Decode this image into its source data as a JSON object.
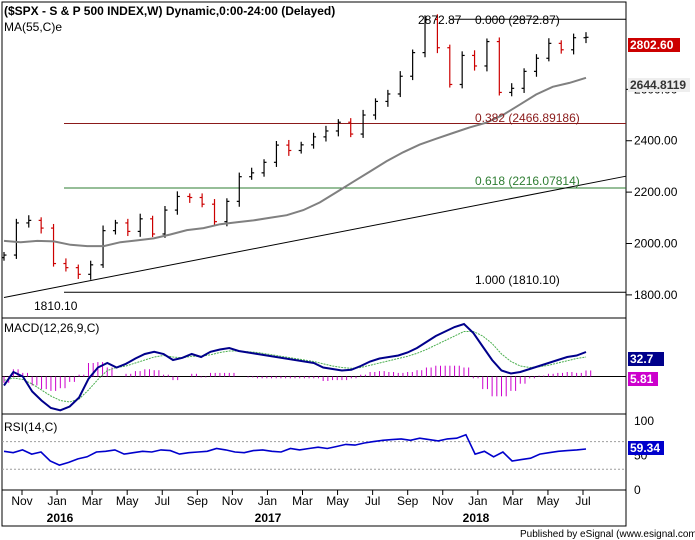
{
  "chart_data": [
    {
      "type": "candlestick",
      "title": "($SPX - S & P 500 INDEX,W) Dynamic,0:00-24:00 (Delayed)",
      "indicator_label": "MA(55,C)e",
      "y_axis": {
        "ylim": [
          1710,
          2940
        ],
        "ticks": [
          "1800.00",
          "2000.00",
          "2200.00",
          "2400.00",
          "2600.00"
        ]
      },
      "x_axis": {
        "months": [
          "Nov",
          "Jan",
          "Mar",
          "May",
          "Jul",
          "Sep",
          "Nov",
          "Jan",
          "Mar",
          "May",
          "Jul",
          "Sep",
          "Nov",
          "Jan",
          "Mar",
          "May",
          "Jul"
        ],
        "years": [
          "2016",
          "2017",
          "2018"
        ]
      },
      "series": [
        {
          "name": "$SPX weekly close",
          "x": [
            "2015-10-02",
            "2015-10-30",
            "2015-11-27",
            "2015-12-25",
            "2016-01-08",
            "2016-01-22",
            "2016-02-05",
            "2016-02-19",
            "2016-03-18",
            "2016-04-15",
            "2016-05-13",
            "2016-06-10",
            "2016-06-24",
            "2016-07-08",
            "2016-08-05",
            "2016-09-02",
            "2016-10-07",
            "2016-11-04",
            "2016-11-11",
            "2016-12-09",
            "2017-01-13",
            "2017-02-10",
            "2017-03-03",
            "2017-03-31",
            "2017-04-28",
            "2017-05-26",
            "2017-06-23",
            "2017-07-28",
            "2017-08-18",
            "2017-09-15",
            "2017-10-13",
            "2017-11-10",
            "2017-12-08",
            "2018-01-05",
            "2018-01-26",
            "2018-02-02",
            "2018-02-09",
            "2018-02-16",
            "2018-03-02",
            "2018-03-09",
            "2018-03-23",
            "2018-04-06",
            "2018-04-27",
            "2018-05-25",
            "2018-06-08",
            "2018-06-22",
            "2018-07-13",
            "2018-07-20"
          ],
          "values": [
            1955,
            2080,
            2090,
            2060,
            1922,
            1906,
            1880,
            1917,
            2050,
            2080,
            2047,
            2096,
            2037,
            2130,
            2183,
            2179,
            2153,
            2085,
            2164,
            2260,
            2275,
            2316,
            2383,
            2362,
            2384,
            2415,
            2438,
            2472,
            2426,
            2500,
            2553,
            2582,
            2651,
            2743,
            2872,
            2762,
            2619,
            2732,
            2691,
            2786,
            2588,
            2604,
            2670,
            2721,
            2779,
            2754,
            2801,
            2802.6
          ]
        },
        {
          "name": "MA(55,C)e",
          "values": [
            2010,
            2005,
            2010,
            2008,
            1995,
            1990,
            1990,
            2005,
            2012,
            2020,
            2035,
            2052,
            2060,
            2075,
            2083,
            2090,
            2100,
            2110,
            2130,
            2160,
            2200,
            2240,
            2280,
            2320,
            2355,
            2385,
            2408,
            2430,
            2452,
            2470,
            2500,
            2540,
            2580,
            2610,
            2625,
            2644.81
          ]
        }
      ],
      "price_labels": {
        "high_label": "2872.87",
        "last_close": "2802.60",
        "ma_value": "2644.8119",
        "low_label": "1810.10"
      },
      "fibonacci": [
        {
          "label": "0.000 (2872.87)",
          "value": 2872.87,
          "color": "#000000"
        },
        {
          "label": "0.382 (2466.89186)",
          "value": 2466.89,
          "color": "#8b1a1a"
        },
        {
          "label": "0.618 (2216.07814)",
          "value": 2216.08,
          "color": "#2e7d32"
        },
        {
          "label": "1.000 (1810.10)",
          "value": 1810.1,
          "color": "#000000"
        }
      ],
      "trendline": {
        "from": [
          0,
          1790
        ],
        "to": [
          1,
          2262
        ]
      },
      "colors": {
        "up": "#000000",
        "down": "#cc0000",
        "ma": "#808080",
        "last_price_bg": "#cc0000"
      }
    },
    {
      "type": "line",
      "title": "MACD(12,26,9,C)",
      "ylim": [
        -50,
        78
      ],
      "series": [
        {
          "name": "MACD",
          "color": "#00008b",
          "values": [
            -12,
            6,
            0,
            -20,
            -32,
            -42,
            -45,
            -40,
            -28,
            -3,
            12,
            18,
            12,
            17,
            24,
            30,
            33,
            30,
            22,
            25,
            30,
            26,
            33,
            36,
            38,
            34,
            32,
            30,
            28,
            26,
            24,
            22,
            20,
            18,
            12,
            10,
            8,
            9,
            14,
            20,
            24,
            26,
            28,
            32,
            38,
            46,
            54,
            60,
            66,
            70,
            58,
            40,
            22,
            8,
            4,
            6,
            10,
            14,
            18,
            22,
            26,
            28,
            32.7
          ]
        },
        {
          "name": "Signal",
          "color": "#4caf50",
          "values": [
            -5,
            -2,
            -4,
            -10,
            -18,
            -26,
            -32,
            -34,
            -30,
            -18,
            -4,
            8,
            12,
            14,
            18,
            22,
            26,
            28,
            26,
            25,
            27,
            27,
            29,
            32,
            34,
            34,
            33,
            32,
            30,
            28,
            26,
            24,
            22,
            20,
            17,
            14,
            12,
            11,
            12,
            15,
            18,
            21,
            24,
            27,
            31,
            36,
            42,
            48,
            54,
            60,
            60,
            54,
            44,
            30,
            20,
            14,
            12,
            13,
            15,
            18,
            21,
            24,
            26
          ]
        }
      ],
      "histogram_color": "#cc00cc",
      "value_labels": {
        "macd": "32.7",
        "hist": "5.81"
      }
    },
    {
      "type": "line",
      "title": "RSI(14,C)",
      "ylim": [
        0,
        110
      ],
      "ticks": [
        "100",
        "50",
        "0"
      ],
      "series": [
        {
          "name": "RSI",
          "color": "#0000cc",
          "values": [
            56,
            54,
            58,
            52,
            55,
            42,
            36,
            40,
            45,
            48,
            55,
            56,
            58,
            52,
            54,
            56,
            55,
            58,
            57,
            52,
            54,
            55,
            56,
            60,
            58,
            55,
            54,
            57,
            58,
            56,
            55,
            60,
            58,
            60,
            62,
            60,
            63,
            66,
            65,
            68,
            70,
            72,
            73,
            74,
            72,
            75,
            73,
            71,
            74,
            75,
            80,
            52,
            56,
            48,
            55,
            42,
            44,
            46,
            52,
            54,
            56,
            57,
            58,
            59.34
          ]
        }
      ],
      "value_labels": {
        "rsi": "59.34"
      }
    }
  ],
  "footer": {
    "credit": "Published by eSignal (www.esignal.com)"
  }
}
